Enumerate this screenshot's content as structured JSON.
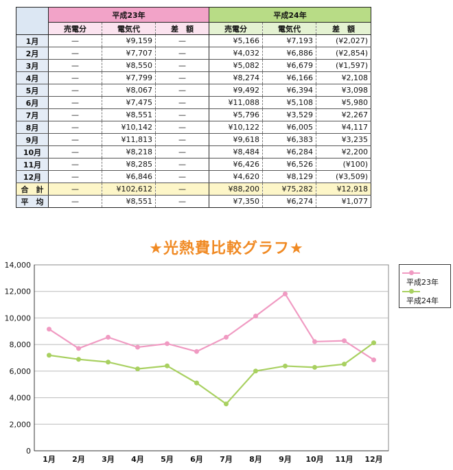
{
  "table": {
    "header": {
      "y23": "平成23年",
      "y24": "平成24年"
    },
    "subheader": {
      "sales": "売電分",
      "elec": "電気代",
      "diff": "差　額"
    },
    "rows": [
      {
        "m": "1月",
        "s23": "—",
        "e23": "¥9,159",
        "d23": "—",
        "s24": "¥5,166",
        "e24": "¥7,193",
        "d24": "(¥2,027)"
      },
      {
        "m": "2月",
        "s23": "—",
        "e23": "¥7,707",
        "d23": "—",
        "s24": "¥4,032",
        "e24": "¥6,886",
        "d24": "(¥2,854)"
      },
      {
        "m": "3月",
        "s23": "—",
        "e23": "¥8,550",
        "d23": "—",
        "s24": "¥5,082",
        "e24": "¥6,679",
        "d24": "(¥1,597)"
      },
      {
        "m": "4月",
        "s23": "—",
        "e23": "¥7,799",
        "d23": "—",
        "s24": "¥8,274",
        "e24": "¥6,166",
        "d24": "¥2,108"
      },
      {
        "m": "5月",
        "s23": "—",
        "e23": "¥8,067",
        "d23": "—",
        "s24": "¥9,492",
        "e24": "¥6,394",
        "d24": "¥3,098"
      },
      {
        "m": "6月",
        "s23": "—",
        "e23": "¥7,475",
        "d23": "—",
        "s24": "¥11,088",
        "e24": "¥5,108",
        "d24": "¥5,980"
      },
      {
        "m": "7月",
        "s23": "—",
        "e23": "¥8,551",
        "d23": "—",
        "s24": "¥5,796",
        "e24": "¥3,529",
        "d24": "¥2,267"
      },
      {
        "m": "8月",
        "s23": "—",
        "e23": "¥10,142",
        "d23": "—",
        "s24": "¥10,122",
        "e24": "¥6,005",
        "d24": "¥4,117"
      },
      {
        "m": "9月",
        "s23": "—",
        "e23": "¥11,813",
        "d23": "—",
        "s24": "¥9,618",
        "e24": "¥6,383",
        "d24": "¥3,235"
      },
      {
        "m": "10月",
        "s23": "—",
        "e23": "¥8,218",
        "d23": "—",
        "s24": "¥8,484",
        "e24": "¥6,284",
        "d24": "¥2,200"
      },
      {
        "m": "11月",
        "s23": "—",
        "e23": "¥8,285",
        "d23": "—",
        "s24": "¥6,426",
        "e24": "¥6,526",
        "d24": "(¥100)"
      },
      {
        "m": "12月",
        "s23": "—",
        "e23": "¥6,846",
        "d23": "—",
        "s24": "¥4,620",
        "e24": "¥8,129",
        "d24": "(¥3,509)"
      }
    ],
    "total": {
      "m": "合　計",
      "s23": "—",
      "e23": "¥102,612",
      "d23": "—",
      "s24": "¥88,200",
      "e24": "¥75,282",
      "d24": "¥12,918"
    },
    "average": {
      "m": "平　均",
      "s23": "—",
      "e23": "¥8,551",
      "d23": "—",
      "s24": "¥7,350",
      "e24": "¥6,274",
      "d24": "¥1,077"
    }
  },
  "chart_data": {
    "type": "line",
    "title": "★光熱費比較グラフ★",
    "categories": [
      "1月",
      "2月",
      "3月",
      "4月",
      "5月",
      "6月",
      "7月",
      "8月",
      "9月",
      "10月",
      "11月",
      "12月"
    ],
    "ylim": [
      0,
      14000
    ],
    "yticks": [
      "0",
      "2,000",
      "4,000",
      "6,000",
      "8,000",
      "10,000",
      "12,000",
      "14,000"
    ],
    "grid": true,
    "legend": "right",
    "series": [
      {
        "name": "平成23年",
        "color": "#f09ac2",
        "values": [
          9159,
          7707,
          8550,
          7799,
          8067,
          7475,
          8551,
          10142,
          11813,
          8218,
          8285,
          6846
        ]
      },
      {
        "name": "平成24年",
        "color": "#a8d060",
        "values": [
          7193,
          6886,
          6679,
          6166,
          6394,
          5108,
          3529,
          6005,
          6383,
          6284,
          6526,
          8129
        ]
      }
    ]
  }
}
